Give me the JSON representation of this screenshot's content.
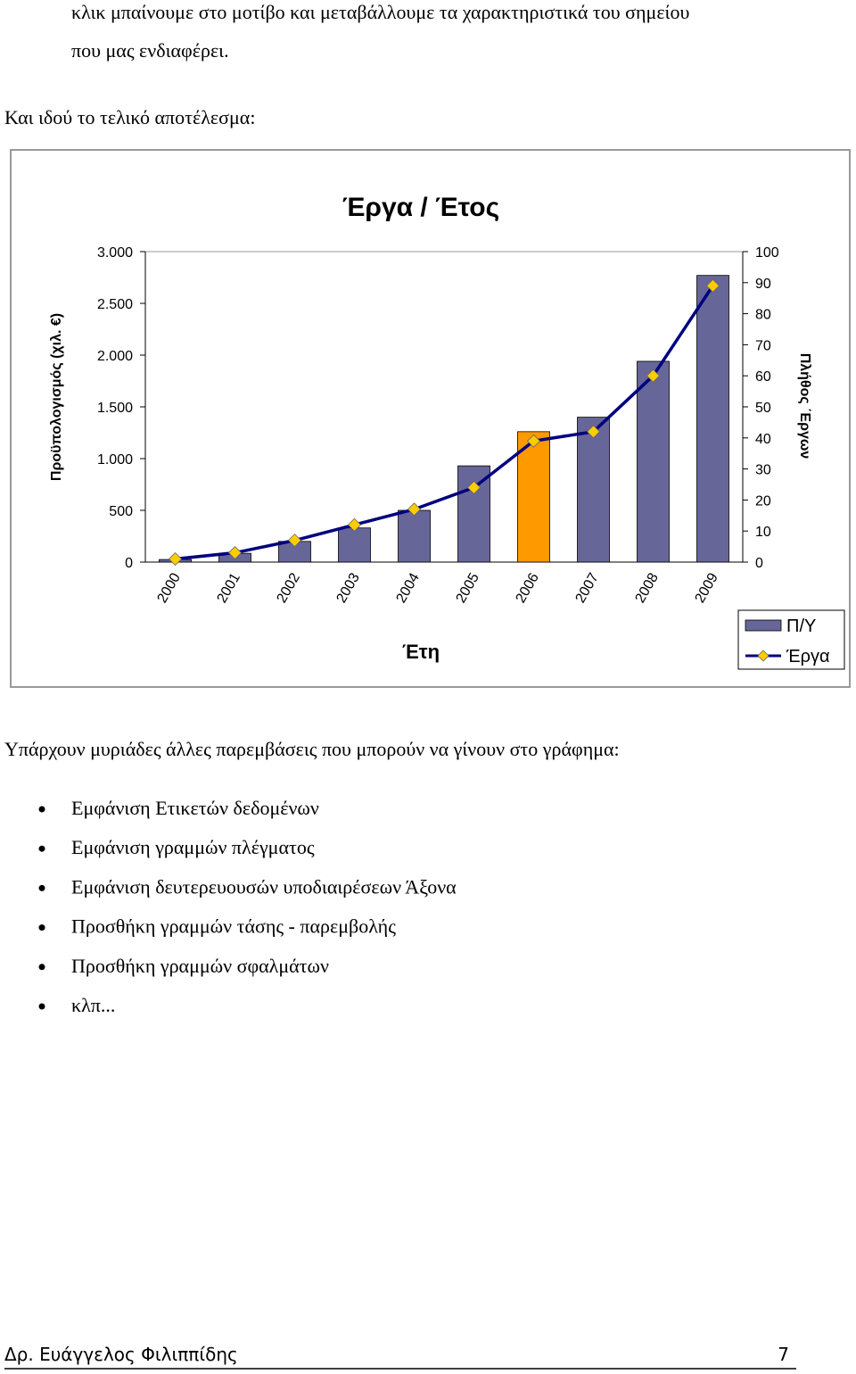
{
  "paragraphs": [
    "κλικ μπαίνουμε στο μοτίβο και μεταβάλλουμε τα χαρακτηριστικά του σημείου",
    "που μας ενδιαφέρει.",
    "Και ιδού το τελικό αποτέλεσμα:",
    "Υπάρχουν μυριάδες άλλες παρεμβάσεις που μπορούν να γίνουν στο γράφημα:"
  ],
  "chart_data": {
    "type": "bar-line",
    "title": "Έργα / Έτος",
    "x_label": "Έτη",
    "y_label": "Προϋπολογισμός (χιλ. €)",
    "y2_label": "Πλήθος ΄Εργων",
    "categories": [
      "2000",
      "2001",
      "2002",
      "2003",
      "2004",
      "2005",
      "2006",
      "2007",
      "2008",
      "2009"
    ],
    "series": [
      {
        "name": "Π/Υ",
        "type": "bar",
        "color": "#666699",
        "colors": [
          "#666699",
          "#666699",
          "#666699",
          "#666699",
          "#666699",
          "#666699",
          "#ff9900",
          "#666699",
          "#666699",
          "#666699"
        ],
        "values": [
          25,
          85,
          200,
          330,
          500,
          930,
          1260,
          1400,
          1940,
          2770
        ]
      },
      {
        "name": "Έργα",
        "type": "line",
        "axis": "y2",
        "color": "#000080",
        "marker_color": "#ffcc00",
        "values": [
          1,
          3,
          7,
          12,
          17,
          24,
          39,
          42,
          60,
          89
        ]
      }
    ],
    "ylim": [
      0,
      3000
    ],
    "yticks": [
      0,
      500,
      {
        "value": 1000,
        "label": "1.000"
      },
      {
        "value": 1500,
        "label": "1.500"
      },
      {
        "value": 2000,
        "label": "2.000"
      },
      {
        "value": 2500,
        "label": "2.500"
      },
      {
        "value": 3000,
        "label": "3.000"
      }
    ],
    "y2lim": [
      0,
      100
    ],
    "y2ticks": [
      0,
      10,
      20,
      30,
      40,
      50,
      60,
      70,
      80,
      90,
      100
    ],
    "legend": "bottom-right",
    "grid": false
  },
  "bullets": [
    "Εμφάνιση Ετικετών δεδομένων",
    "Εμφάνιση γραμμών πλέγματος",
    "Εμφάνιση δευτερευουσών υποδιαιρέσεων Άξονα",
    "Προσθήκη γραμμών τάσης - παρεμβολής",
    "Προσθήκη γραμμών σφαλμάτων",
    "κλπ..."
  ],
  "footer": {
    "author": "Δρ. Ευάγγελος Φιλιππίδης",
    "page": "7"
  }
}
